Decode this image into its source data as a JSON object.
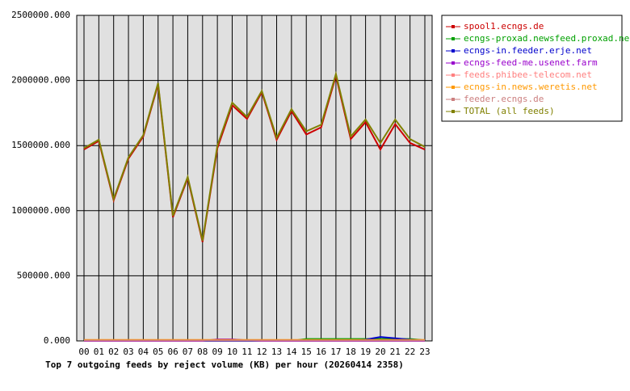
{
  "chart_data": {
    "type": "line",
    "title": "Top 7 outgoing feeds by reject volume (KB) per hour (20260414 2358)",
    "categories": [
      "00",
      "01",
      "02",
      "03",
      "04",
      "05",
      "06",
      "07",
      "08",
      "09",
      "10",
      "11",
      "12",
      "13",
      "14",
      "15",
      "16",
      "17",
      "18",
      "19",
      "20",
      "21",
      "22",
      "23"
    ],
    "ylim": [
      0,
      2500000
    ],
    "yticks": [
      {
        "value": 0,
        "label": "0.000"
      },
      {
        "value": 500000,
        "label": "500000.000"
      },
      {
        "value": 1000000,
        "label": "1000000.000"
      },
      {
        "value": 1500000,
        "label": "1500000.000"
      },
      {
        "value": 2000000,
        "label": "2000000.000"
      },
      {
        "value": 2500000,
        "label": "2500000.000"
      }
    ],
    "grid": true,
    "legend": "right",
    "series": [
      {
        "name": "spool1.ecngs.de",
        "color": "#cc0000",
        "values": [
          1470000,
          1535000,
          1080000,
          1400000,
          1570000,
          1970000,
          950000,
          1250000,
          760000,
          1480000,
          1810000,
          1705000,
          1910000,
          1545000,
          1765000,
          1585000,
          1640000,
          2035000,
          1550000,
          1680000,
          1470000,
          1665000,
          1520000,
          1470000
        ]
      },
      {
        "name": "ecngs-proxad.newsfeed.proxad.net",
        "color": "#00a000",
        "values": [
          0,
          0,
          0,
          0,
          0,
          0,
          0,
          0,
          0,
          0,
          0,
          0,
          0,
          0,
          0,
          15000,
          15000,
          15000,
          15000,
          15000,
          15000,
          15000,
          15000,
          5000
        ]
      },
      {
        "name": "ecngs-in.feeder.erje.net",
        "color": "#0000cc",
        "values": [
          0,
          0,
          0,
          0,
          0,
          0,
          0,
          0,
          0,
          0,
          0,
          0,
          0,
          0,
          0,
          0,
          0,
          0,
          0,
          10000,
          30000,
          20000,
          10000,
          0
        ]
      },
      {
        "name": "ecngs-feed-me.usenet.farm",
        "color": "#9900cc",
        "values": [
          0,
          0,
          0,
          0,
          0,
          0,
          0,
          0,
          0,
          12000,
          12000,
          5000,
          0,
          0,
          0,
          0,
          0,
          0,
          0,
          0,
          0,
          0,
          0,
          0
        ]
      },
      {
        "name": "feeds.phibee-telecom.net",
        "color": "#ff8080",
        "values": [
          5000,
          5000,
          5000,
          5000,
          5000,
          5000,
          5000,
          5000,
          5000,
          5000,
          5000,
          5000,
          5000,
          5000,
          5000,
          5000,
          5000,
          5000,
          5000,
          5000,
          5000,
          5000,
          5000,
          5000
        ]
      },
      {
        "name": "ecngs-in.news.weretis.net",
        "color": "#ff9900",
        "values": [
          8000,
          8000,
          8000,
          8000,
          8000,
          8000,
          8000,
          8000,
          8000,
          8000,
          8000,
          8000,
          8000,
          8000,
          8000,
          8000,
          8000,
          8000,
          8000,
          8000,
          8000,
          8000,
          8000,
          8000
        ]
      },
      {
        "name": "feeder.ecngs.de",
        "color": "#cc8080",
        "values": [
          3000,
          3000,
          3000,
          3000,
          3000,
          3000,
          3000,
          3000,
          3000,
          3000,
          3000,
          3000,
          3000,
          3000,
          3000,
          3000,
          3000,
          3000,
          3000,
          3000,
          3000,
          3000,
          3000,
          3000
        ]
      },
      {
        "name": "TOTAL (all feeds)",
        "color": "#808000",
        "values": [
          1480000,
          1545000,
          1090000,
          1410000,
          1580000,
          1980000,
          960000,
          1260000,
          770000,
          1500000,
          1830000,
          1720000,
          1920000,
          1560000,
          1780000,
          1610000,
          1660000,
          2050000,
          1570000,
          1700000,
          1520000,
          1700000,
          1550000,
          1490000
        ]
      }
    ]
  }
}
